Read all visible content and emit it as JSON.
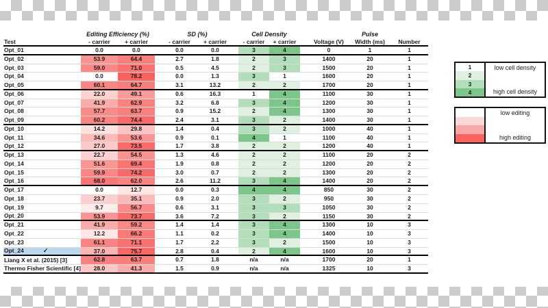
{
  "chart_data": {
    "type": "table",
    "group_headers": [
      "Editing Efficiency (%)",
      "SD (%)",
      "Cell Density",
      "Pulse"
    ],
    "columns": [
      "Test",
      "- carrier",
      "+ carrier",
      "- carrier",
      "+ carrier",
      "- carrier",
      "+ carrier",
      "Voltage (V)",
      "Width (ms)",
      "Number"
    ],
    "rows": [
      {
        "test": "Opt_01",
        "ee": [
          "0.0",
          "0.0"
        ],
        "sd": [
          "0.0",
          "0.0"
        ],
        "cd": [
          "3",
          "4"
        ],
        "voltage": "0",
        "pulse_width": "1",
        "pulse_number": "1",
        "thick_bottom": true
      },
      {
        "test": "Opt_02",
        "ee": [
          "53.9",
          "64.4"
        ],
        "sd": [
          "2.7",
          "1.8"
        ],
        "cd": [
          "2",
          "3"
        ],
        "voltage": "1400",
        "pulse_width": "20",
        "pulse_number": "1"
      },
      {
        "test": "Opt_03",
        "ee": [
          "59.0",
          "71.0"
        ],
        "sd": [
          "0.5",
          "4.5"
        ],
        "cd": [
          "2",
          "3"
        ],
        "voltage": "1500",
        "pulse_width": "20",
        "pulse_number": "1"
      },
      {
        "test": "Opt_04",
        "ee": [
          "0.0",
          "78.2"
        ],
        "sd": [
          "0.0",
          "1.3"
        ],
        "cd": [
          "3",
          "1"
        ],
        "voltage": "1600",
        "pulse_width": "20",
        "pulse_number": "1"
      },
      {
        "test": "Opt_05",
        "ee": [
          "60.1",
          "64.7"
        ],
        "sd": [
          "3.1",
          "13.2"
        ],
        "cd": [
          "2",
          "2"
        ],
        "voltage": "1700",
        "pulse_width": "20",
        "pulse_number": "1",
        "thick_bottom": true
      },
      {
        "test": "Opt_06",
        "ee": [
          "22.0",
          "49.1"
        ],
        "sd": [
          "0.6",
          "16.3"
        ],
        "cd": [
          "1",
          "4"
        ],
        "voltage": "1100",
        "pulse_width": "30",
        "pulse_number": "1"
      },
      {
        "test": "Opt_07",
        "ee": [
          "41.9",
          "62.9"
        ],
        "sd": [
          "3.2",
          "6.8"
        ],
        "cd": [
          "3",
          "4"
        ],
        "voltage": "1200",
        "pulse_width": "30",
        "pulse_number": "1"
      },
      {
        "test": "Opt_08",
        "ee": [
          "57.7",
          "63.7"
        ],
        "sd": [
          "0.9",
          "15.2"
        ],
        "cd": [
          "2",
          "4"
        ],
        "voltage": "1300",
        "pulse_width": "30",
        "pulse_number": "1"
      },
      {
        "test": "Opt_09",
        "ee": [
          "60.2",
          "74.4"
        ],
        "sd": [
          "2.4",
          "3.1"
        ],
        "cd": [
          "3",
          "2"
        ],
        "voltage": "1400",
        "pulse_width": "30",
        "pulse_number": "1",
        "thick_bottom": true
      },
      {
        "test": "Opt_10",
        "ee": [
          "14.2",
          "29.8"
        ],
        "sd": [
          "1.4",
          "0.4"
        ],
        "cd": [
          "3",
          "2"
        ],
        "voltage": "1000",
        "pulse_width": "40",
        "pulse_number": "1"
      },
      {
        "test": "Opt_11",
        "ee": [
          "34.6",
          "53.6"
        ],
        "sd": [
          "0.9",
          "0.1"
        ],
        "cd": [
          "4",
          "1"
        ],
        "voltage": "1100",
        "pulse_width": "40",
        "pulse_number": "1"
      },
      {
        "test": "Opt_12",
        "ee": [
          "27.0",
          "73.5"
        ],
        "sd": [
          "1.7",
          "3.8"
        ],
        "cd": [
          "2",
          "2"
        ],
        "voltage": "1200",
        "pulse_width": "40",
        "pulse_number": "1",
        "thick_bottom": true
      },
      {
        "test": "Opt_13",
        "ee": [
          "22.7",
          "54.5"
        ],
        "sd": [
          "1.3",
          "4.6"
        ],
        "cd": [
          "2",
          "2"
        ],
        "voltage": "1100",
        "pulse_width": "20",
        "pulse_number": "2"
      },
      {
        "test": "Opt_14",
        "ee": [
          "51.6",
          "69.4"
        ],
        "sd": [
          "1.9",
          "0.8"
        ],
        "cd": [
          "2",
          "2"
        ],
        "voltage": "1200",
        "pulse_width": "20",
        "pulse_number": "2"
      },
      {
        "test": "Opt_15",
        "ee": [
          "59.9",
          "74.2"
        ],
        "sd": [
          "3.0",
          "0.7"
        ],
        "cd": [
          "2",
          "2"
        ],
        "voltage": "1300",
        "pulse_width": "20",
        "pulse_number": "2"
      },
      {
        "test": "Opt_16",
        "ee": [
          "68.0",
          "62.0"
        ],
        "sd": [
          "2.6",
          "11.2"
        ],
        "cd": [
          "3",
          "4"
        ],
        "voltage": "1400",
        "pulse_width": "20",
        "pulse_number": "2",
        "thick_bottom": true
      },
      {
        "test": "Opt_17",
        "ee": [
          "0.0",
          "12.7"
        ],
        "sd": [
          "0.0",
          "0.3"
        ],
        "cd": [
          "4",
          "4"
        ],
        "voltage": "850",
        "pulse_width": "30",
        "pulse_number": "2"
      },
      {
        "test": "Opt_18",
        "ee": [
          "23.7",
          "35.1"
        ],
        "sd": [
          "0.9",
          "2.0"
        ],
        "cd": [
          "3",
          "2"
        ],
        "voltage": "950",
        "pulse_width": "30",
        "pulse_number": "2"
      },
      {
        "test": "Opt_19",
        "ee": [
          "9.7",
          "56.7"
        ],
        "sd": [
          "0.6",
          "3.1"
        ],
        "cd": [
          "3",
          "3"
        ],
        "voltage": "1050",
        "pulse_width": "30",
        "pulse_number": "2"
      },
      {
        "test": "Opt_20",
        "ee": [
          "53.9",
          "73.7"
        ],
        "sd": [
          "3.6",
          "7.2"
        ],
        "cd": [
          "3",
          "2"
        ],
        "voltage": "1150",
        "pulse_width": "30",
        "pulse_number": "2",
        "thick_bottom": true
      },
      {
        "test": "Opt_21",
        "ee": [
          "41.9",
          "59.2"
        ],
        "sd": [
          "1.4",
          "1.4"
        ],
        "cd": [
          "3",
          "4"
        ],
        "voltage": "1300",
        "pulse_width": "10",
        "pulse_number": "3"
      },
      {
        "test": "Opt_22",
        "ee": [
          "12.2",
          "66.2"
        ],
        "sd": [
          "1.1",
          "0.2"
        ],
        "cd": [
          "3",
          "4"
        ],
        "voltage": "1400",
        "pulse_width": "10",
        "pulse_number": "3"
      },
      {
        "test": "Opt_23",
        "ee": [
          "61.1",
          "71.1"
        ],
        "sd": [
          "1.7",
          "2.2"
        ],
        "cd": [
          "3",
          "2"
        ],
        "voltage": "1500",
        "pulse_width": "10",
        "pulse_number": "3"
      },
      {
        "test": "Opt_24",
        "ee": [
          "37.0",
          "75.7"
        ],
        "sd": [
          "2.8",
          "0.4"
        ],
        "cd": [
          "2",
          "4"
        ],
        "voltage": "1600",
        "pulse_width": "10",
        "pulse_number": "3",
        "thick_bottom": true,
        "highlight": true,
        "checked": true
      },
      {
        "test": "Liang X et al. (2015) [3]",
        "ee": [
          "62.8",
          "63.7"
        ],
        "sd": [
          "0.7",
          "1.8"
        ],
        "cd": [
          "n/a",
          "n/a"
        ],
        "voltage": "1700",
        "pulse_width": "20",
        "pulse_number": "1"
      },
      {
        "test": "Thermo Fisher Scientific [4]",
        "ee": [
          "28.0",
          "41.3"
        ],
        "sd": [
          "1.5",
          "0.9"
        ],
        "cd": [
          "n/a",
          "n/a"
        ],
        "voltage": "1325",
        "pulse_width": "10",
        "pulse_number": "3",
        "thick_bottom": true
      }
    ]
  },
  "legend_density": {
    "values": [
      "1",
      "2",
      "3",
      "4"
    ],
    "colors": [
      "#ffffff",
      "#dff0e1",
      "#b2deba",
      "#7cc689"
    ],
    "low_label": "low cell density",
    "high_label": "high cell density"
  },
  "legend_editing": {
    "colors": [
      "#ffffff",
      "#fbd8d8",
      "#f7a8a6",
      "#f8625f"
    ],
    "low_label": "low editing",
    "high_label": "high editing"
  },
  "style": {
    "editing_high_color": "#f8625f",
    "editing_scale_max": 78.2,
    "density_colors": {
      "1": "#ffffff",
      "2": "#dff0e1",
      "3": "#b2deba",
      "4": "#7cc689"
    },
    "highlight_color": "#bdd7ee",
    "check_glyph": "✓"
  }
}
